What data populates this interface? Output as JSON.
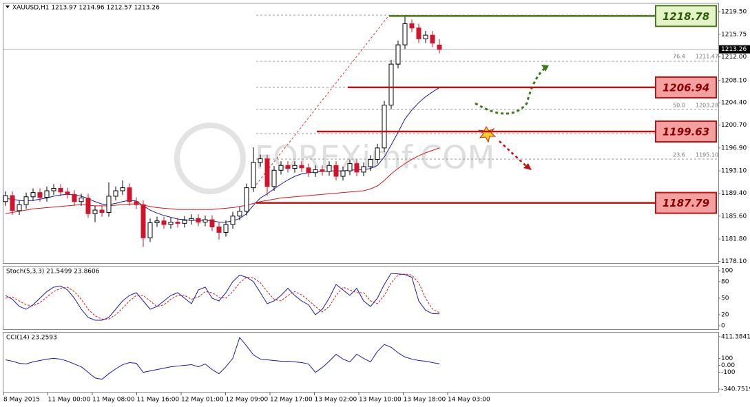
{
  "chart_data": {
    "type": "candlestick",
    "header": "XAUUSD,H1  1213.97 1214.96 1212.57 1213.26",
    "watermark": "FOREXimf.COM",
    "open": [
      1188.0,
      1189.0,
      1186.5,
      1187.5,
      1188.8,
      1189.5,
      1188.7,
      1189.8,
      1190.2,
      1189.6,
      1189.2,
      1188.0,
      1188.6,
      1186.0,
      1186.6,
      1186.2,
      1188.9,
      1189.8,
      1190.3,
      1188.0,
      1187.5,
      1182.0,
      1184.5,
      1184.8,
      1184.2,
      1184.6,
      1184.4,
      1184.9,
      1185.2,
      1184.6,
      1185.0,
      1183.8,
      1182.9,
      1184.2,
      1185.6,
      1186.4,
      1190.3,
      1194.5,
      1195.1,
      1190.5,
      1193.2,
      1194.0,
      1193.5,
      1194.0,
      1193.6,
      1192.8,
      1193.3,
      1193.0,
      1194.0,
      1192.2,
      1193.1,
      1194.3,
      1192.9,
      1193.8,
      1195.0,
      1196.9,
      1204.0,
      1210.8,
      1214.0,
      1217.5,
      1216.8,
      1215.0,
      1215.6,
      1213.97
    ],
    "high": [
      1189.7,
      1189.7,
      1188.2,
      1189.5,
      1190.2,
      1190.2,
      1190.5,
      1190.9,
      1190.9,
      1190.3,
      1189.9,
      1189.3,
      1189.3,
      1187.3,
      1187.3,
      1191.2,
      1190.5,
      1191.5,
      1191.0,
      1188.7,
      1188.2,
      1185.2,
      1185.5,
      1185.5,
      1185.3,
      1185.3,
      1185.6,
      1185.9,
      1185.9,
      1185.7,
      1185.7,
      1184.5,
      1184.9,
      1186.3,
      1187.1,
      1191.0,
      1197.0,
      1195.8,
      1195.8,
      1193.9,
      1194.7,
      1194.7,
      1194.7,
      1194.7,
      1194.3,
      1194.0,
      1194.0,
      1194.7,
      1194.7,
      1193.8,
      1195.0,
      1195.0,
      1194.5,
      1195.7,
      1197.6,
      1204.7,
      1211.5,
      1214.7,
      1218.78,
      1218.2,
      1217.5,
      1216.3,
      1216.3,
      1214.96
    ],
    "low": [
      1187.3,
      1185.8,
      1185.8,
      1186.8,
      1188.1,
      1188.0,
      1188.0,
      1189.1,
      1188.9,
      1188.5,
      1187.3,
      1187.3,
      1185.3,
      1184.6,
      1185.5,
      1185.5,
      1188.2,
      1189.1,
      1187.3,
      1186.8,
      1180.5,
      1181.3,
      1183.8,
      1183.5,
      1183.5,
      1183.7,
      1183.7,
      1184.2,
      1183.9,
      1183.9,
      1183.1,
      1181.7,
      1182.2,
      1183.5,
      1184.9,
      1185.7,
      1189.6,
      1193.8,
      1189.0,
      1189.8,
      1192.5,
      1192.8,
      1192.8,
      1192.9,
      1192.1,
      1192.1,
      1192.3,
      1192.3,
      1191.5,
      1191.5,
      1192.4,
      1192.2,
      1192.2,
      1193.1,
      1194.3,
      1196.2,
      1203.3,
      1210.1,
      1213.3,
      1216.1,
      1214.3,
      1214.3,
      1213.6,
      1212.57
    ],
    "close": [
      1189.0,
      1186.5,
      1187.5,
      1188.8,
      1189.5,
      1188.7,
      1189.8,
      1190.2,
      1189.6,
      1189.2,
      1188.0,
      1188.6,
      1186.0,
      1186.6,
      1186.2,
      1188.9,
      1189.8,
      1190.3,
      1188.0,
      1187.5,
      1182.0,
      1184.5,
      1184.8,
      1184.2,
      1184.6,
      1184.4,
      1184.9,
      1185.2,
      1184.6,
      1185.0,
      1183.8,
      1182.9,
      1184.2,
      1185.6,
      1186.4,
      1190.3,
      1194.5,
      1195.1,
      1190.5,
      1193.2,
      1194.0,
      1193.5,
      1194.0,
      1193.6,
      1192.8,
      1193.3,
      1193.0,
      1194.0,
      1192.2,
      1193.1,
      1194.3,
      1192.9,
      1193.8,
      1195.0,
      1196.9,
      1204.0,
      1210.8,
      1214.0,
      1217.5,
      1216.8,
      1215.0,
      1215.6,
      1214.3,
      1213.26
    ],
    "up_color": "#000000",
    "down_color": "#d0142c",
    "ma": [
      {
        "color": "#1a1aa8",
        "values": [
          1188.5,
          1188.4,
          1188.2,
          1188.1,
          1188.2,
          1188.4,
          1188.6,
          1188.9,
          1189.1,
          1189.2,
          1189.1,
          1188.9,
          1188.5,
          1188.0,
          1187.6,
          1187.5,
          1187.7,
          1188.0,
          1188.2,
          1188.1,
          1187.3,
          1186.6,
          1186.1,
          1185.7,
          1185.4,
          1185.1,
          1185.0,
          1184.9,
          1184.9,
          1184.9,
          1184.8,
          1184.6,
          1184.6,
          1184.8,
          1185.2,
          1186.0,
          1187.4,
          1188.6,
          1189.3,
          1190.1,
          1190.9,
          1191.6,
          1192.2,
          1192.6,
          1192.8,
          1192.9,
          1193.0,
          1193.1,
          1193.1,
          1193.1,
          1193.2,
          1193.3,
          1193.3,
          1193.5,
          1194.0,
          1195.4,
          1197.4,
          1199.5,
          1201.7,
          1203.2,
          1204.4,
          1205.4,
          1206.2,
          1206.9
        ]
      },
      {
        "color": "#d81818",
        "values": [
          1186.0,
          1186.2,
          1186.4,
          1186.6,
          1186.8,
          1186.9,
          1187.0,
          1187.1,
          1187.2,
          1187.3,
          1187.4,
          1187.5,
          1187.4,
          1187.3,
          1187.3,
          1187.3,
          1187.4,
          1187.5,
          1187.6,
          1187.6,
          1187.4,
          1187.2,
          1187.0,
          1186.9,
          1186.8,
          1186.7,
          1186.7,
          1186.7,
          1186.7,
          1186.7,
          1186.7,
          1186.8,
          1186.9,
          1187.0,
          1187.2,
          1187.4,
          1187.7,
          1188.0,
          1188.2,
          1188.4,
          1188.6,
          1188.7,
          1188.8,
          1188.9,
          1189.0,
          1189.1,
          1189.2,
          1189.3,
          1189.4,
          1189.5,
          1189.6,
          1189.7,
          1189.8,
          1190.1,
          1190.6,
          1191.5,
          1192.6,
          1193.5,
          1194.3,
          1195.0,
          1195.6,
          1196.1,
          1196.5,
          1196.9
        ]
      }
    ],
    "ylim": [
      1177.81,
      1220.98
    ],
    "yticks": [
      {
        "value": 1219.5,
        "label": "1219.50"
      },
      1215.75,
      {
        "value": 1212.0,
        "label": "1212.00"
      },
      {
        "value": 1208.1,
        "label": "1208.10"
      },
      {
        "value": 1204.4,
        "label": "1204.40"
      },
      {
        "value": 1200.7,
        "label": "1200.70"
      },
      {
        "value": 1196.9,
        "label": "1196.90"
      },
      {
        "value": 1193.1,
        "label": "1193.10"
      },
      {
        "value": 1189.4,
        "label": "1189.40"
      },
      {
        "value": 1185.6,
        "label": "1185.60"
      },
      {
        "value": 1181.8,
        "label": "1181.80"
      },
      {
        "value": 1178.1,
        "label": "1178.10"
      }
    ],
    "current_price": 1213.26,
    "levels": [
      {
        "value": 1218.78,
        "color": "#4a7a1c",
        "box": "#e4f4c6"
      },
      {
        "value": 1206.94,
        "color": "#c01010",
        "box": "#f2a0a0"
      },
      {
        "value": 1199.63,
        "color": "#c01010",
        "box": "#f2a0a0"
      },
      {
        "value": 1187.79,
        "color": "#c01010",
        "box": "#f2a0a0"
      }
    ],
    "fib": [
      {
        "ratio": "76.4",
        "price": "1211.47"
      },
      {
        "ratio": "50.0",
        "price": "1203.28"
      },
      {
        "ratio": "23.6",
        "price": "1195.10"
      }
    ],
    "stoch": {
      "title": "Stoch(5,3,3) 21.5499 23.8606",
      "ylim": [
        -7.5,
        108.75
      ],
      "yticks": [
        100,
        80,
        50,
        20,
        0
      ],
      "series": [
        {
          "color": "#1a1aa8",
          "values": [
            55,
            48,
            35,
            30,
            38,
            50,
            62,
            70,
            72,
            65,
            50,
            30,
            15,
            10,
            10,
            15,
            30,
            45,
            55,
            60,
            45,
            30,
            35,
            45,
            55,
            60,
            50,
            40,
            65,
            70,
            50,
            45,
            60,
            80,
            92,
            88,
            80,
            60,
            40,
            45,
            55,
            68,
            55,
            45,
            38,
            20,
            30,
            50,
            75,
            65,
            55,
            68,
            45,
            35,
            50,
            75,
            95,
            94,
            93,
            88,
            45,
            28,
            22,
            21.55
          ]
        },
        {
          "color": "#d81818",
          "values": [
            50,
            52,
            45,
            38,
            36,
            42,
            52,
            62,
            68,
            70,
            62,
            48,
            30,
            18,
            12,
            12,
            20,
            32,
            45,
            55,
            55,
            45,
            35,
            38,
            48,
            55,
            55,
            48,
            52,
            62,
            60,
            52,
            50,
            62,
            78,
            88,
            87,
            78,
            62,
            48,
            45,
            55,
            62,
            56,
            46,
            35,
            25,
            35,
            55,
            70,
            65,
            60,
            60,
            45,
            40,
            55,
            78,
            92,
            94,
            92,
            78,
            50,
            30,
            23.86
          ]
        }
      ]
    },
    "cci": {
      "title": "CCI(14) 23.2593",
      "ylim": [
        -390,
        480
      ],
      "yticks": [
        411.3841,
        100,
        {
          "value": 0,
          "label": "0.00"
        },
        -100,
        -340.7519
      ],
      "series": [
        {
          "color": "#1a1aa8",
          "values": [
            80,
            60,
            30,
            20,
            50,
            70,
            90,
            100,
            90,
            60,
            20,
            -20,
            -100,
            -180,
            -200,
            -120,
            -50,
            10,
            40,
            30,
            -100,
            -80,
            -60,
            -40,
            -20,
            -10,
            0,
            10,
            -20,
            20,
            -60,
            -120,
            -20,
            100,
            400,
            280,
            150,
            90,
            80,
            70,
            60,
            60,
            50,
            40,
            20,
            -100,
            -30,
            60,
            160,
            90,
            50,
            160,
            100,
            50,
            200,
            300,
            260,
            180,
            120,
            90,
            70,
            60,
            40,
            23.26
          ]
        }
      ]
    },
    "x_labels": [
      "8 May 2015",
      "11 May 00:00",
      "11 May 08:00",
      "11 May 16:00",
      "12 May 01:00",
      "12 May 09:00",
      "12 May 17:00",
      "13 May 02:00",
      "13 May 10:00",
      "13 May 18:00",
      "14 May 03:00"
    ]
  }
}
